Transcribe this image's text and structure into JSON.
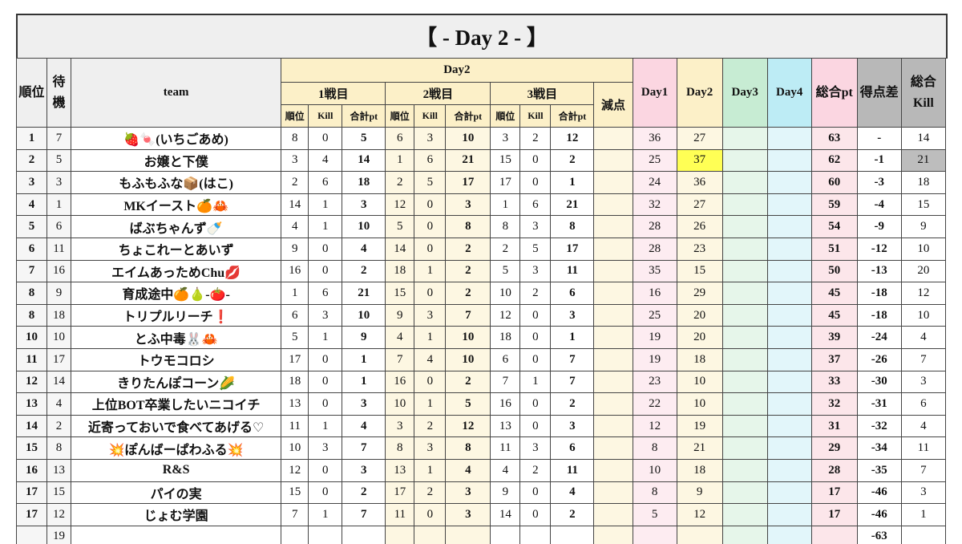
{
  "title": "【  - Day 2 - 】",
  "table": {
    "head": {
      "rank": "順位",
      "wait": "待機",
      "team": "team",
      "group": "Day2",
      "matches": [
        "1戦目",
        "2戦目",
        "3戦目"
      ],
      "sub": [
        "順位",
        "Kill",
        "合計pt"
      ],
      "penalty": "減点",
      "days": [
        "Day1",
        "Day2",
        "Day3",
        "Day4"
      ],
      "total": "総合pt",
      "diff": "得点差",
      "kills": "総合Kill"
    },
    "rows": [
      [
        1,
        7,
        "🍓🍬(いちごあめ)",
        8,
        0,
        5,
        6,
        3,
        10,
        3,
        2,
        12,
        null,
        36,
        27,
        null,
        null,
        63,
        "-",
        14
      ],
      [
        2,
        5,
        "お嬢と下僕",
        3,
        4,
        14,
        1,
        6,
        21,
        15,
        0,
        2,
        null,
        25,
        37,
        null,
        null,
        62,
        -1,
        21
      ],
      [
        3,
        3,
        "もふもふな📦(はこ)",
        2,
        6,
        18,
        2,
        5,
        17,
        17,
        0,
        1,
        null,
        24,
        36,
        null,
        null,
        60,
        -3,
        18
      ],
      [
        4,
        1,
        "MKイースト🍊🦀",
        14,
        1,
        3,
        12,
        0,
        3,
        1,
        6,
        21,
        null,
        32,
        27,
        null,
        null,
        59,
        -4,
        15
      ],
      [
        5,
        6,
        "ばぶちゃんず🍼",
        4,
        1,
        10,
        5,
        0,
        8,
        8,
        3,
        8,
        null,
        28,
        26,
        null,
        null,
        54,
        -9,
        9
      ],
      [
        6,
        11,
        "ちょこれーとあいず",
        9,
        0,
        4,
        14,
        0,
        2,
        2,
        5,
        17,
        null,
        28,
        23,
        null,
        null,
        51,
        -12,
        10
      ],
      [
        7,
        16,
        "エイムあっためChu💋",
        16,
        0,
        2,
        18,
        1,
        2,
        5,
        3,
        11,
        null,
        35,
        15,
        null,
        null,
        50,
        -13,
        20
      ],
      [
        8,
        9,
        "育成途中🍊🍐-🍅-",
        1,
        6,
        21,
        15,
        0,
        2,
        10,
        2,
        6,
        null,
        16,
        29,
        null,
        null,
        45,
        -18,
        12
      ],
      [
        8,
        18,
        "トリプルリーチ❗",
        6,
        3,
        10,
        9,
        3,
        7,
        12,
        0,
        3,
        null,
        25,
        20,
        null,
        null,
        45,
        -18,
        10
      ],
      [
        10,
        10,
        "とふ中毒🐰🦀",
        5,
        1,
        9,
        4,
        1,
        10,
        18,
        0,
        1,
        null,
        19,
        20,
        null,
        null,
        39,
        -24,
        4
      ],
      [
        11,
        17,
        "トウモコロシ",
        17,
        0,
        1,
        7,
        4,
        10,
        6,
        0,
        7,
        null,
        19,
        18,
        null,
        null,
        37,
        -26,
        7
      ],
      [
        12,
        14,
        "きりたんぽコーン🌽",
        18,
        0,
        1,
        16,
        0,
        2,
        7,
        1,
        7,
        null,
        23,
        10,
        null,
        null,
        33,
        -30,
        3
      ],
      [
        13,
        4,
        "上位BOT卒業したいニコイチ",
        13,
        0,
        3,
        10,
        1,
        5,
        16,
        0,
        2,
        null,
        22,
        10,
        null,
        null,
        32,
        -31,
        6
      ],
      [
        14,
        2,
        "近寄っておいで食べてあげる♡",
        11,
        1,
        4,
        3,
        2,
        12,
        13,
        0,
        3,
        null,
        12,
        19,
        null,
        null,
        31,
        -32,
        4
      ],
      [
        15,
        8,
        "💥ぽんばーぱわふる💥",
        10,
        3,
        7,
        8,
        3,
        8,
        11,
        3,
        6,
        null,
        8,
        21,
        null,
        null,
        29,
        -34,
        11
      ],
      [
        16,
        13,
        "R&S",
        12,
        0,
        3,
        13,
        1,
        4,
        4,
        2,
        11,
        null,
        10,
        18,
        null,
        null,
        28,
        -35,
        7
      ],
      [
        17,
        15,
        "パイの実",
        15,
        0,
        2,
        17,
        2,
        3,
        9,
        0,
        4,
        null,
        8,
        9,
        null,
        null,
        17,
        -46,
        3
      ],
      [
        17,
        12,
        "じょむ学園",
        7,
        1,
        7,
        11,
        0,
        3,
        14,
        0,
        2,
        null,
        5,
        12,
        null,
        null,
        17,
        -46,
        1
      ],
      [
        null,
        19,
        null,
        null,
        null,
        null,
        null,
        null,
        null,
        null,
        null,
        null,
        null,
        null,
        null,
        null,
        null,
        null,
        -63,
        null
      ]
    ]
  }
}
